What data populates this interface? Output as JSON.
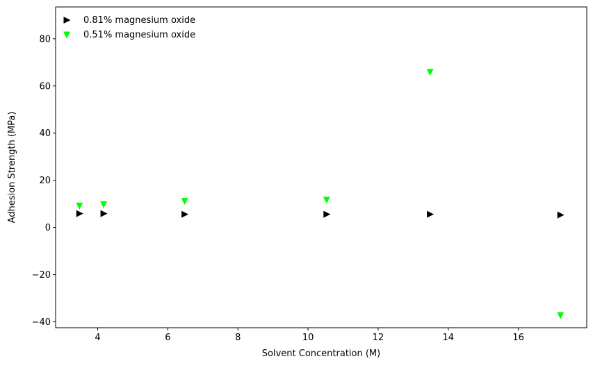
{
  "chart_data": {
    "type": "scatter",
    "title": "",
    "xlabel": "Solvent Concentration (M)",
    "ylabel": "Adhesion Strength (MPa)",
    "xlim": [
      2.8,
      17.95
    ],
    "ylim": [
      -42.5,
      93.5
    ],
    "xticks": [
      4,
      6,
      8,
      10,
      12,
      14,
      16
    ],
    "yticks": [
      -40,
      -20,
      0,
      20,
      40,
      60,
      80
    ],
    "xtick_labels": [
      "4",
      "6",
      "8",
      "10",
      "12",
      "14",
      "16"
    ],
    "ytick_labels": [
      "−40",
      "−20",
      "0",
      "20",
      "40",
      "60",
      "80"
    ],
    "grid": false,
    "legend_position": "top-left",
    "series": [
      {
        "name": "0.81% magnesium oxide",
        "marker": "triangle-right",
        "color": "#000000",
        "x": [
          3.48,
          4.17,
          6.48,
          10.53,
          13.48,
          17.2
        ],
        "y": [
          5.9,
          5.9,
          5.6,
          5.6,
          5.6,
          5.3
        ]
      },
      {
        "name": "0.51% magnesium oxide",
        "marker": "triangle-down",
        "color": "#00ff00",
        "x": [
          3.48,
          4.17,
          6.48,
          10.53,
          13.48,
          17.2
        ],
        "y": [
          9.2,
          9.8,
          11.2,
          11.7,
          65.9,
          -37.2
        ]
      }
    ]
  }
}
